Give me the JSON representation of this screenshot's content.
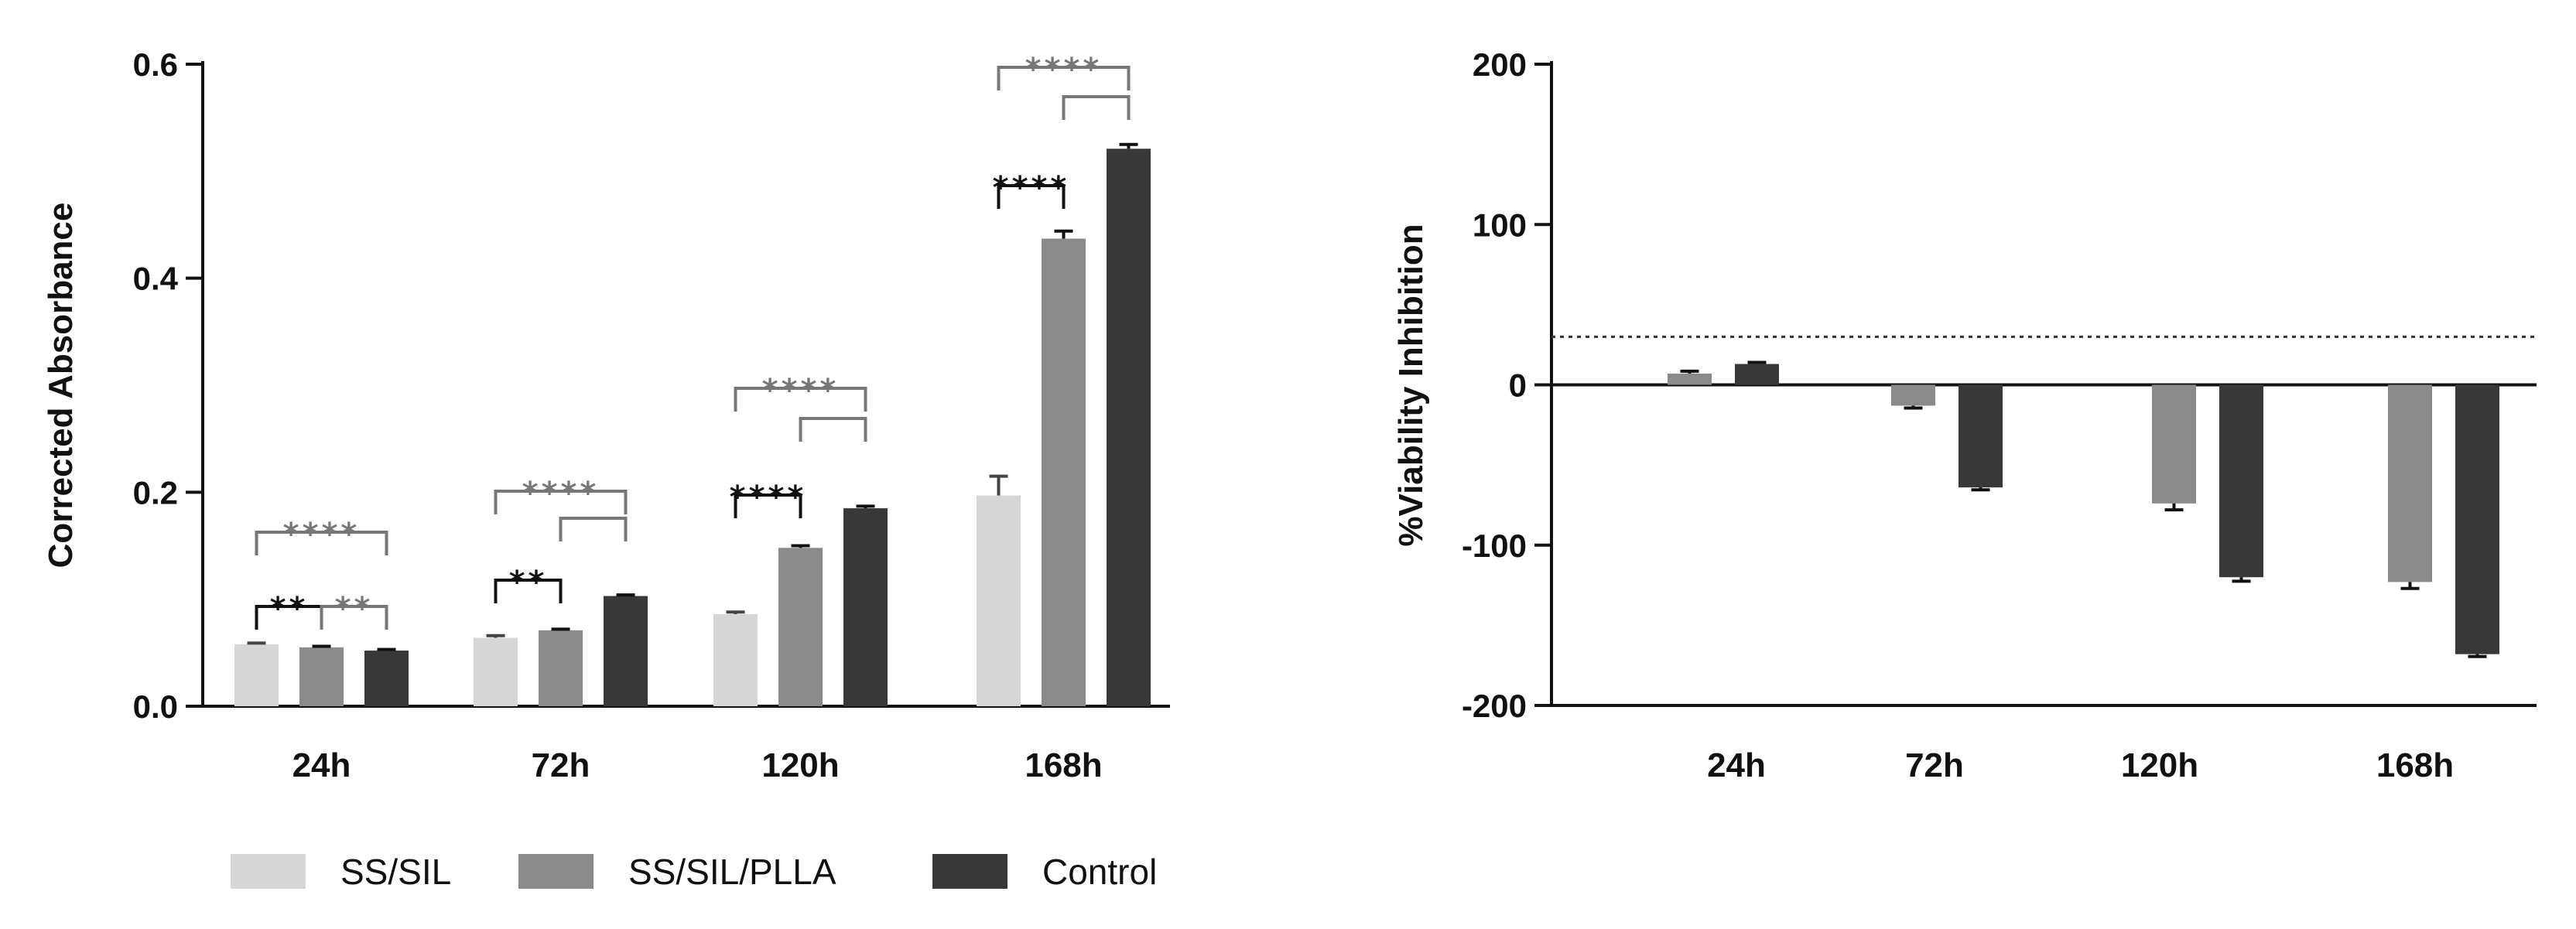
{
  "colors": {
    "ss_sil": "#d6d6d6",
    "ss_sil_plla": "#8a8a8a",
    "control": "#383838",
    "sig_black": "#111111",
    "sig_gray": "#777777"
  },
  "legend": [
    {
      "label": "SS/SIL",
      "color": "#d6d6d6"
    },
    {
      "label": "SS/SIL/PLLA",
      "color": "#8a8a8a"
    },
    {
      "label": "Control",
      "color": "#383838"
    }
  ],
  "chart_data": [
    {
      "type": "bar",
      "title": "",
      "xlabel": "",
      "ylabel": "Corrected Absorbance",
      "ylim": [
        0,
        0.6
      ],
      "yticks": [
        0.0,
        0.2,
        0.4,
        0.6
      ],
      "ytick_labels": [
        "0.0",
        "0.2",
        "0.4",
        "0.6"
      ],
      "categories": [
        "24h",
        "72h",
        "120h",
        "168h"
      ],
      "series": [
        {
          "name": "SS/SIL",
          "values": [
            0.058,
            0.064,
            0.086,
            0.197
          ],
          "errors": [
            0.001,
            0.002,
            0.002,
            0.018
          ]
        },
        {
          "name": "SS/SIL/PLLA",
          "values": [
            0.055,
            0.071,
            0.148,
            0.437
          ],
          "errors": [
            0.001,
            0.001,
            0.002,
            0.007
          ]
        },
        {
          "name": "Control",
          "values": [
            0.052,
            0.103,
            0.185,
            0.521
          ],
          "errors": [
            0.001,
            0.001,
            0.002,
            0.004
          ]
        }
      ],
      "significance": [
        {
          "group": 0,
          "from": 0,
          "to": 2,
          "label": "****",
          "tier": "outer",
          "color": "gray"
        },
        {
          "group": 0,
          "from": 0,
          "to": 1,
          "label": "**",
          "tier": "inner",
          "color": "black"
        },
        {
          "group": 0,
          "from": 1,
          "to": 2,
          "label": "**",
          "tier": "inner",
          "color": "gray"
        },
        {
          "group": 1,
          "from": 0,
          "to": 2,
          "label": "****",
          "tier": "outer",
          "color": "gray"
        },
        {
          "group": 1,
          "from": 1,
          "to": 2,
          "label": "",
          "tier": "mid",
          "color": "gray"
        },
        {
          "group": 1,
          "from": 0,
          "to": 1,
          "label": "**",
          "tier": "inner",
          "color": "black"
        },
        {
          "group": 2,
          "from": 0,
          "to": 2,
          "label": "****",
          "tier": "outer",
          "color": "gray"
        },
        {
          "group": 2,
          "from": 1,
          "to": 2,
          "label": "",
          "tier": "mid",
          "color": "gray"
        },
        {
          "group": 2,
          "from": 0,
          "to": 1,
          "label": "****",
          "tier": "inner",
          "color": "black"
        },
        {
          "group": 3,
          "from": 0,
          "to": 2,
          "label": "****",
          "tier": "outer",
          "color": "gray"
        },
        {
          "group": 3,
          "from": 1,
          "to": 2,
          "label": "",
          "tier": "mid",
          "color": "gray"
        },
        {
          "group": 3,
          "from": 0,
          "to": 1,
          "label": "****",
          "tier": "inner",
          "color": "black"
        }
      ]
    },
    {
      "type": "bar",
      "title": "",
      "xlabel": "",
      "ylabel": "%Viability Inhibition",
      "ylim": [
        -200,
        200
      ],
      "yticks": [
        -200,
        -100,
        0,
        100,
        200
      ],
      "ytick_labels": [
        "-200",
        "-100",
        "0",
        "100",
        "200"
      ],
      "reference_line": 30,
      "categories": [
        "24h",
        "72h",
        "120h",
        "168h"
      ],
      "series": [
        {
          "name": "SS/SIL/PLLA",
          "values": [
            7,
            -13,
            -74,
            -123
          ],
          "errors": [
            1.5,
            1.5,
            4,
            4
          ]
        },
        {
          "name": "Control",
          "values": [
            13,
            -64,
            -120,
            -168
          ],
          "errors": [
            1,
            1.5,
            2.5,
            1.5
          ]
        }
      ]
    }
  ]
}
